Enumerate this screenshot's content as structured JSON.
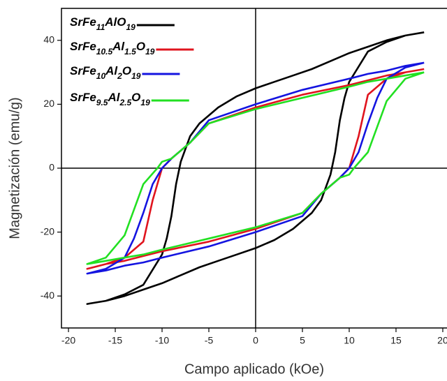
{
  "chart_data": {
    "type": "line",
    "x_label": "Campo aplicado (kOe)",
    "y_label": "Magnetización (emu/g)",
    "xlim": [
      -20.75,
      20.45
    ],
    "ylim": [
      -50,
      50
    ],
    "xticks": [
      -20,
      -15,
      -10,
      -5,
      0,
      5,
      10,
      15,
      20
    ],
    "yticks": [
      -40,
      -20,
      0,
      20,
      40
    ],
    "legend": "upper left",
    "series": [
      {
        "name": "SrFe11AlO19",
        "color": "#000000",
        "x": [
          18,
          16,
          14,
          12,
          10,
          8,
          6,
          4,
          2,
          0,
          -2,
          -4,
          -6,
          -7,
          -8,
          -8.5,
          -9,
          -9.5,
          -10,
          -12,
          -14,
          -16,
          -18,
          -16,
          -14,
          -12,
          -10,
          -8,
          -6,
          -4,
          -2,
          0,
          2,
          4,
          6,
          7,
          8,
          8.5,
          9,
          9.5,
          10,
          12,
          14,
          16,
          18
        ],
        "values": [
          42.5,
          41.5,
          40,
          38,
          36,
          33.5,
          31,
          29,
          27,
          25,
          22.5,
          19,
          14,
          10,
          2,
          -5,
          -15,
          -22,
          -27,
          -36.5,
          -39.5,
          -41.5,
          -42.5,
          -41.5,
          -40,
          -38,
          -36,
          -33.5,
          -31,
          -29,
          -27,
          -25,
          -22.5,
          -19,
          -14,
          -10,
          -2,
          5,
          15,
          22,
          27,
          36.5,
          39.5,
          41.5,
          42.5
        ]
      },
      {
        "name": "SrFe10.5Al1.5O19",
        "color": "#e0141e",
        "x": [
          18,
          16,
          14,
          12,
          10,
          5,
          0,
          -5,
          -7,
          -9,
          -10,
          -11,
          -12,
          -14,
          -16,
          -18,
          -16,
          -14,
          -12,
          -10,
          -5,
          0,
          5,
          7,
          9,
          10,
          11,
          12,
          14,
          16,
          18
        ],
        "values": [
          31,
          30,
          29,
          27.5,
          26,
          23,
          19,
          14,
          8,
          3,
          0,
          -10,
          -23,
          -28,
          -30,
          -31.5,
          -30,
          -29,
          -27.5,
          -26,
          -23,
          -19,
          -14,
          -8,
          -3,
          0,
          10,
          23,
          28,
          30,
          31
        ]
      },
      {
        "name": "SrFe10Al2O19",
        "color": "#1414e0",
        "x": [
          18,
          16,
          14,
          12,
          10,
          5,
          0,
          -5,
          -7,
          -9,
          -10,
          -11,
          -12,
          -13,
          -14,
          -16,
          -18,
          -16,
          -14,
          -12,
          -10,
          -5,
          0,
          5,
          7,
          9,
          10,
          11,
          12,
          13,
          14,
          16,
          18
        ],
        "values": [
          33,
          32,
          30.5,
          29.5,
          28,
          24.5,
          20,
          15,
          8,
          3,
          0,
          -5,
          -14,
          -22,
          -28,
          -31.5,
          -33,
          -32,
          -30.5,
          -29.5,
          -28,
          -24.5,
          -20,
          -15,
          -8,
          -3,
          0,
          5,
          14,
          22,
          28,
          31.5,
          33
        ]
      },
      {
        "name": "SrFe9.5Al2.5O19",
        "color": "#22e022",
        "x": [
          18,
          16,
          14,
          12,
          10,
          5,
          0,
          -5,
          -7,
          -9,
          -10,
          -10.5,
          -12,
          -14,
          -16,
          -18,
          -16,
          -14,
          -12,
          -10,
          -5,
          0,
          5,
          7,
          9,
          10,
          10.5,
          12,
          14,
          16,
          18
        ],
        "values": [
          30,
          29,
          28,
          27,
          25.5,
          22,
          18.5,
          14,
          8,
          3,
          2,
          0,
          -5,
          -21,
          -28,
          -30,
          -29,
          -28,
          -27,
          -25.5,
          -22,
          -18.5,
          -14,
          -8,
          -3,
          -2,
          0,
          5,
          21,
          28,
          30
        ]
      }
    ]
  }
}
